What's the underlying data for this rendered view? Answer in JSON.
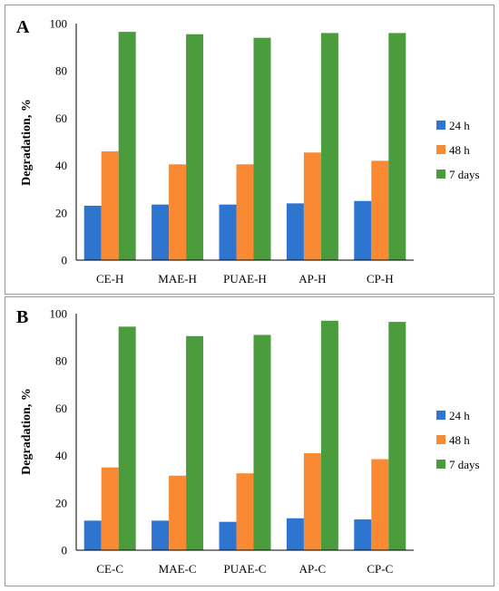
{
  "chart_data": [
    {
      "panel": "A",
      "type": "bar",
      "ylabel": "Degradation, %",
      "ylim": [
        0,
        100
      ],
      "yticks": [
        0,
        20,
        40,
        60,
        80,
        100
      ],
      "categories": [
        "CE-H",
        "MAE-H",
        "PUAE-H",
        "AP-H",
        "CP-H"
      ],
      "series": [
        {
          "name": "24 h",
          "color": "#2e75d0",
          "values": [
            23,
            23.5,
            23.5,
            24,
            25
          ]
        },
        {
          "name": "48 h",
          "color": "#f98a33",
          "values": [
            46,
            40.5,
            40.5,
            45.5,
            42
          ]
        },
        {
          "name": "7 days",
          "color": "#4a9c3c",
          "values": [
            96.5,
            95.5,
            94,
            96,
            96
          ]
        }
      ],
      "legend_position": "right",
      "grid": false
    },
    {
      "panel": "B",
      "type": "bar",
      "ylabel": "Degradation, %",
      "ylim": [
        0,
        100
      ],
      "yticks": [
        0,
        20,
        40,
        60,
        80,
        100
      ],
      "categories": [
        "CE-C",
        "MAE-C",
        "PUAE-C",
        "AP-C",
        "CP-C"
      ],
      "series": [
        {
          "name": "24 h",
          "color": "#2e75d0",
          "values": [
            12.5,
            12.5,
            12,
            13.5,
            13
          ]
        },
        {
          "name": "48 h",
          "color": "#f98a33",
          "values": [
            35,
            31.5,
            32.5,
            41,
            38.5
          ]
        },
        {
          "name": "7 days",
          "color": "#4a9c3c",
          "values": [
            94.5,
            90.5,
            91,
            97,
            96.5
          ]
        }
      ],
      "legend_position": "right",
      "grid": false
    }
  ]
}
